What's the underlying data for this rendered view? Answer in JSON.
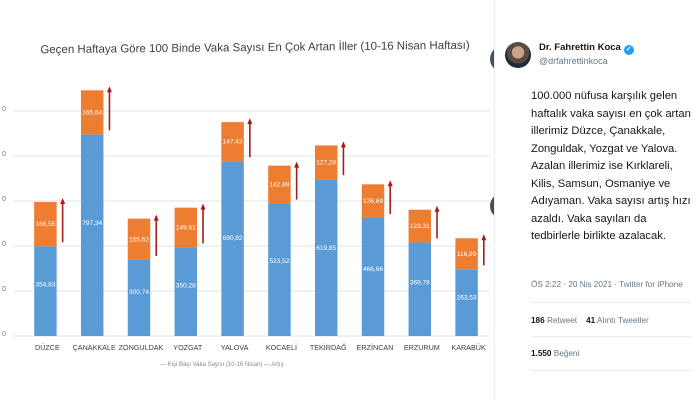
{
  "photo": {
    "y_ticks": [
      "0",
      "0",
      "0",
      "0",
      "0",
      "0"
    ],
    "legend_text": "— Kişi Başı Vaka Sayısı (10-16 Nisan) — Artış"
  },
  "chart_data": {
    "type": "bar",
    "title": "Geçen Haftaya Göre 100 Binde Vaka Sayısı En Çok Artan İller (10-16 Nisan Haftası)",
    "categories": [
      "DÜZCE",
      "ÇANAKKALE",
      "ZONGULDAK",
      "YOZGAT",
      "YALOVA",
      "KOCAELİ",
      "TEKİRDAĞ",
      "ERZİNCAN",
      "ERZURUM",
      "KARABÜK"
    ],
    "series": [
      {
        "values": [
          354.83,
          797.34,
          300.74,
          350.28,
          690.82,
          523.52,
          619.85,
          466.66,
          369.78,
          263.53
        ],
        "labels": [
          "354,83",
          "797,34",
          "300,74",
          "350,28",
          "690,82",
          "523,52",
          "619,85",
          "466,66",
          "369,78",
          "263,53"
        ],
        "color": "#5b9bd5"
      },
      {
        "values": [
          166.55,
          165.64,
          155.62,
          149.61,
          147.43,
          142.89,
          127.28,
          126.69,
          123.31,
          116.99
        ],
        "labels": [
          "166,55",
          "165,64",
          "155,62",
          "149,61",
          "147,43",
          "142,89",
          "127,28",
          "126,69",
          "123,31",
          "116,99"
        ],
        "color": "#ed7d31"
      }
    ],
    "stacked": true,
    "arrow_color": "#a61c1c",
    "ylim": [
      0,
      1000
    ],
    "grid": true
  },
  "tweet": {
    "name": "Dr. Fahrettin Koca",
    "verified_icon": "verified-badge-icon",
    "handle": "@drfahrettinkoca",
    "text": "100.000 nüfusa karşılık gelen haftalık vaka sayısı en çok artan illerimiz Düzce, Çanakkale, Zonguldak, Yozgat ve Yalova. Azalan illerimiz ise Kırklareli, Kilis, Samsun, Osmaniye ve Adıyaman. Vaka sayısı artış hızı azaldı. Vaka sayıları da tedbirlerle birlikte azalacak.",
    "timestamp": "ÖS 2:22 · 20 Nis 2021 · Twitter for iPhone",
    "retweets_count": "186",
    "retweets_label": "Retweet",
    "quotes_count": "41",
    "quotes_label": "Alıntı Tweetler",
    "likes_count": "1.550",
    "likes_label": "Beğeni"
  },
  "nav": {
    "collapse_icon": "double-chevron-right-icon",
    "next_icon": "chevron-right-icon"
  }
}
